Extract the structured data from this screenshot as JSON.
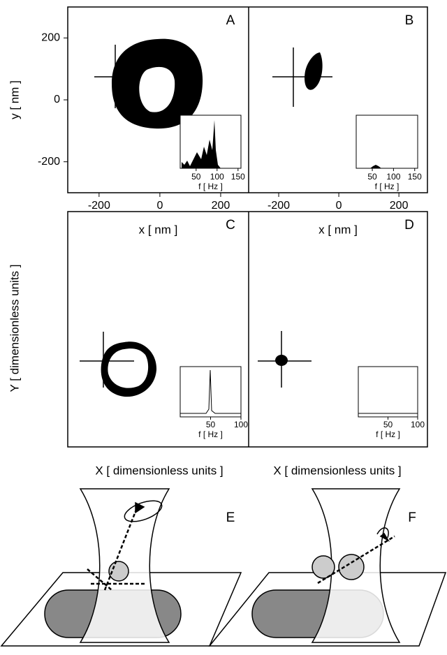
{
  "top": {
    "y_label": "y [ nm ]",
    "y_ticks": [
      200,
      0,
      -200
    ],
    "y_range": [
      -300,
      300
    ],
    "panels": [
      {
        "label": "A",
        "x_label": "x [ nm ]",
        "x_ticks": [
          -200,
          0,
          200
        ],
        "x_range": [
          -303,
          292
        ],
        "inset": {
          "x_ticks": [
            50,
            100,
            150
          ],
          "x_range": [
            12,
            157
          ],
          "x_label": "f [ Hz ]"
        }
      },
      {
        "label": "B",
        "x_label": "x [ nm ]",
        "x_ticks": [
          -200,
          0,
          200
        ],
        "x_range": [
          -300,
          295
        ],
        "inset": {
          "x_ticks": [
            50,
            100,
            150
          ],
          "x_range": [
            12,
            157
          ],
          "x_label": "f [ Hz ]"
        }
      }
    ]
  },
  "middle": {
    "y_label": "Y [ dimensionless units ]",
    "panels": [
      {
        "label": "C",
        "x_label": "X [ dimensionless units ]",
        "inset": {
          "x_ticks": [
            50,
            100
          ],
          "x_range": [
            0,
            100
          ],
          "x_label": "f [ Hz ]"
        }
      },
      {
        "label": "D",
        "x_label": "X [ dimensionless units ]",
        "inset": {
          "x_ticks": [
            50,
            100
          ],
          "x_range": [
            0,
            100
          ],
          "x_label": "f [ Hz ]"
        }
      }
    ]
  },
  "bottom": {
    "panels": [
      {
        "label": "E"
      },
      {
        "label": "F"
      }
    ]
  }
}
